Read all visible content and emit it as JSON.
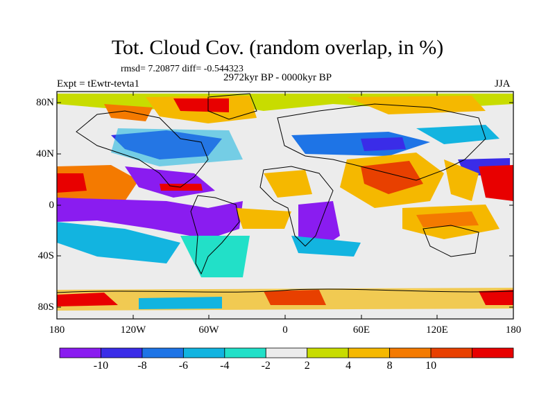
{
  "header": {
    "title": "Tot. Cloud Cov. (random overlap, in %)",
    "stats": "rmsd= 7.20877 diff= -0.544323",
    "period": "2972kyr BP - 0000kyr BP",
    "expt": "Expt = tEwtr-tevta1",
    "season": "JJA"
  },
  "axes": {
    "y_ticks": [
      "80N",
      "40N",
      "0",
      "40S",
      "80S"
    ],
    "x_ticks": [
      "180",
      "120W",
      "60W",
      "0",
      "60E",
      "120E",
      "180"
    ]
  },
  "colorbar": {
    "labels": [
      "-10",
      "-8",
      "-6",
      "-4",
      "-2",
      "2",
      "4",
      "8",
      "10"
    ],
    "colors": [
      "#8a1cf0",
      "#3a2ce8",
      "#1e74e6",
      "#12b4e0",
      "#22e0c8",
      "#ececec",
      "#c8dc00",
      "#f5b800",
      "#f47a00",
      "#e84000",
      "#e80000"
    ]
  }
}
